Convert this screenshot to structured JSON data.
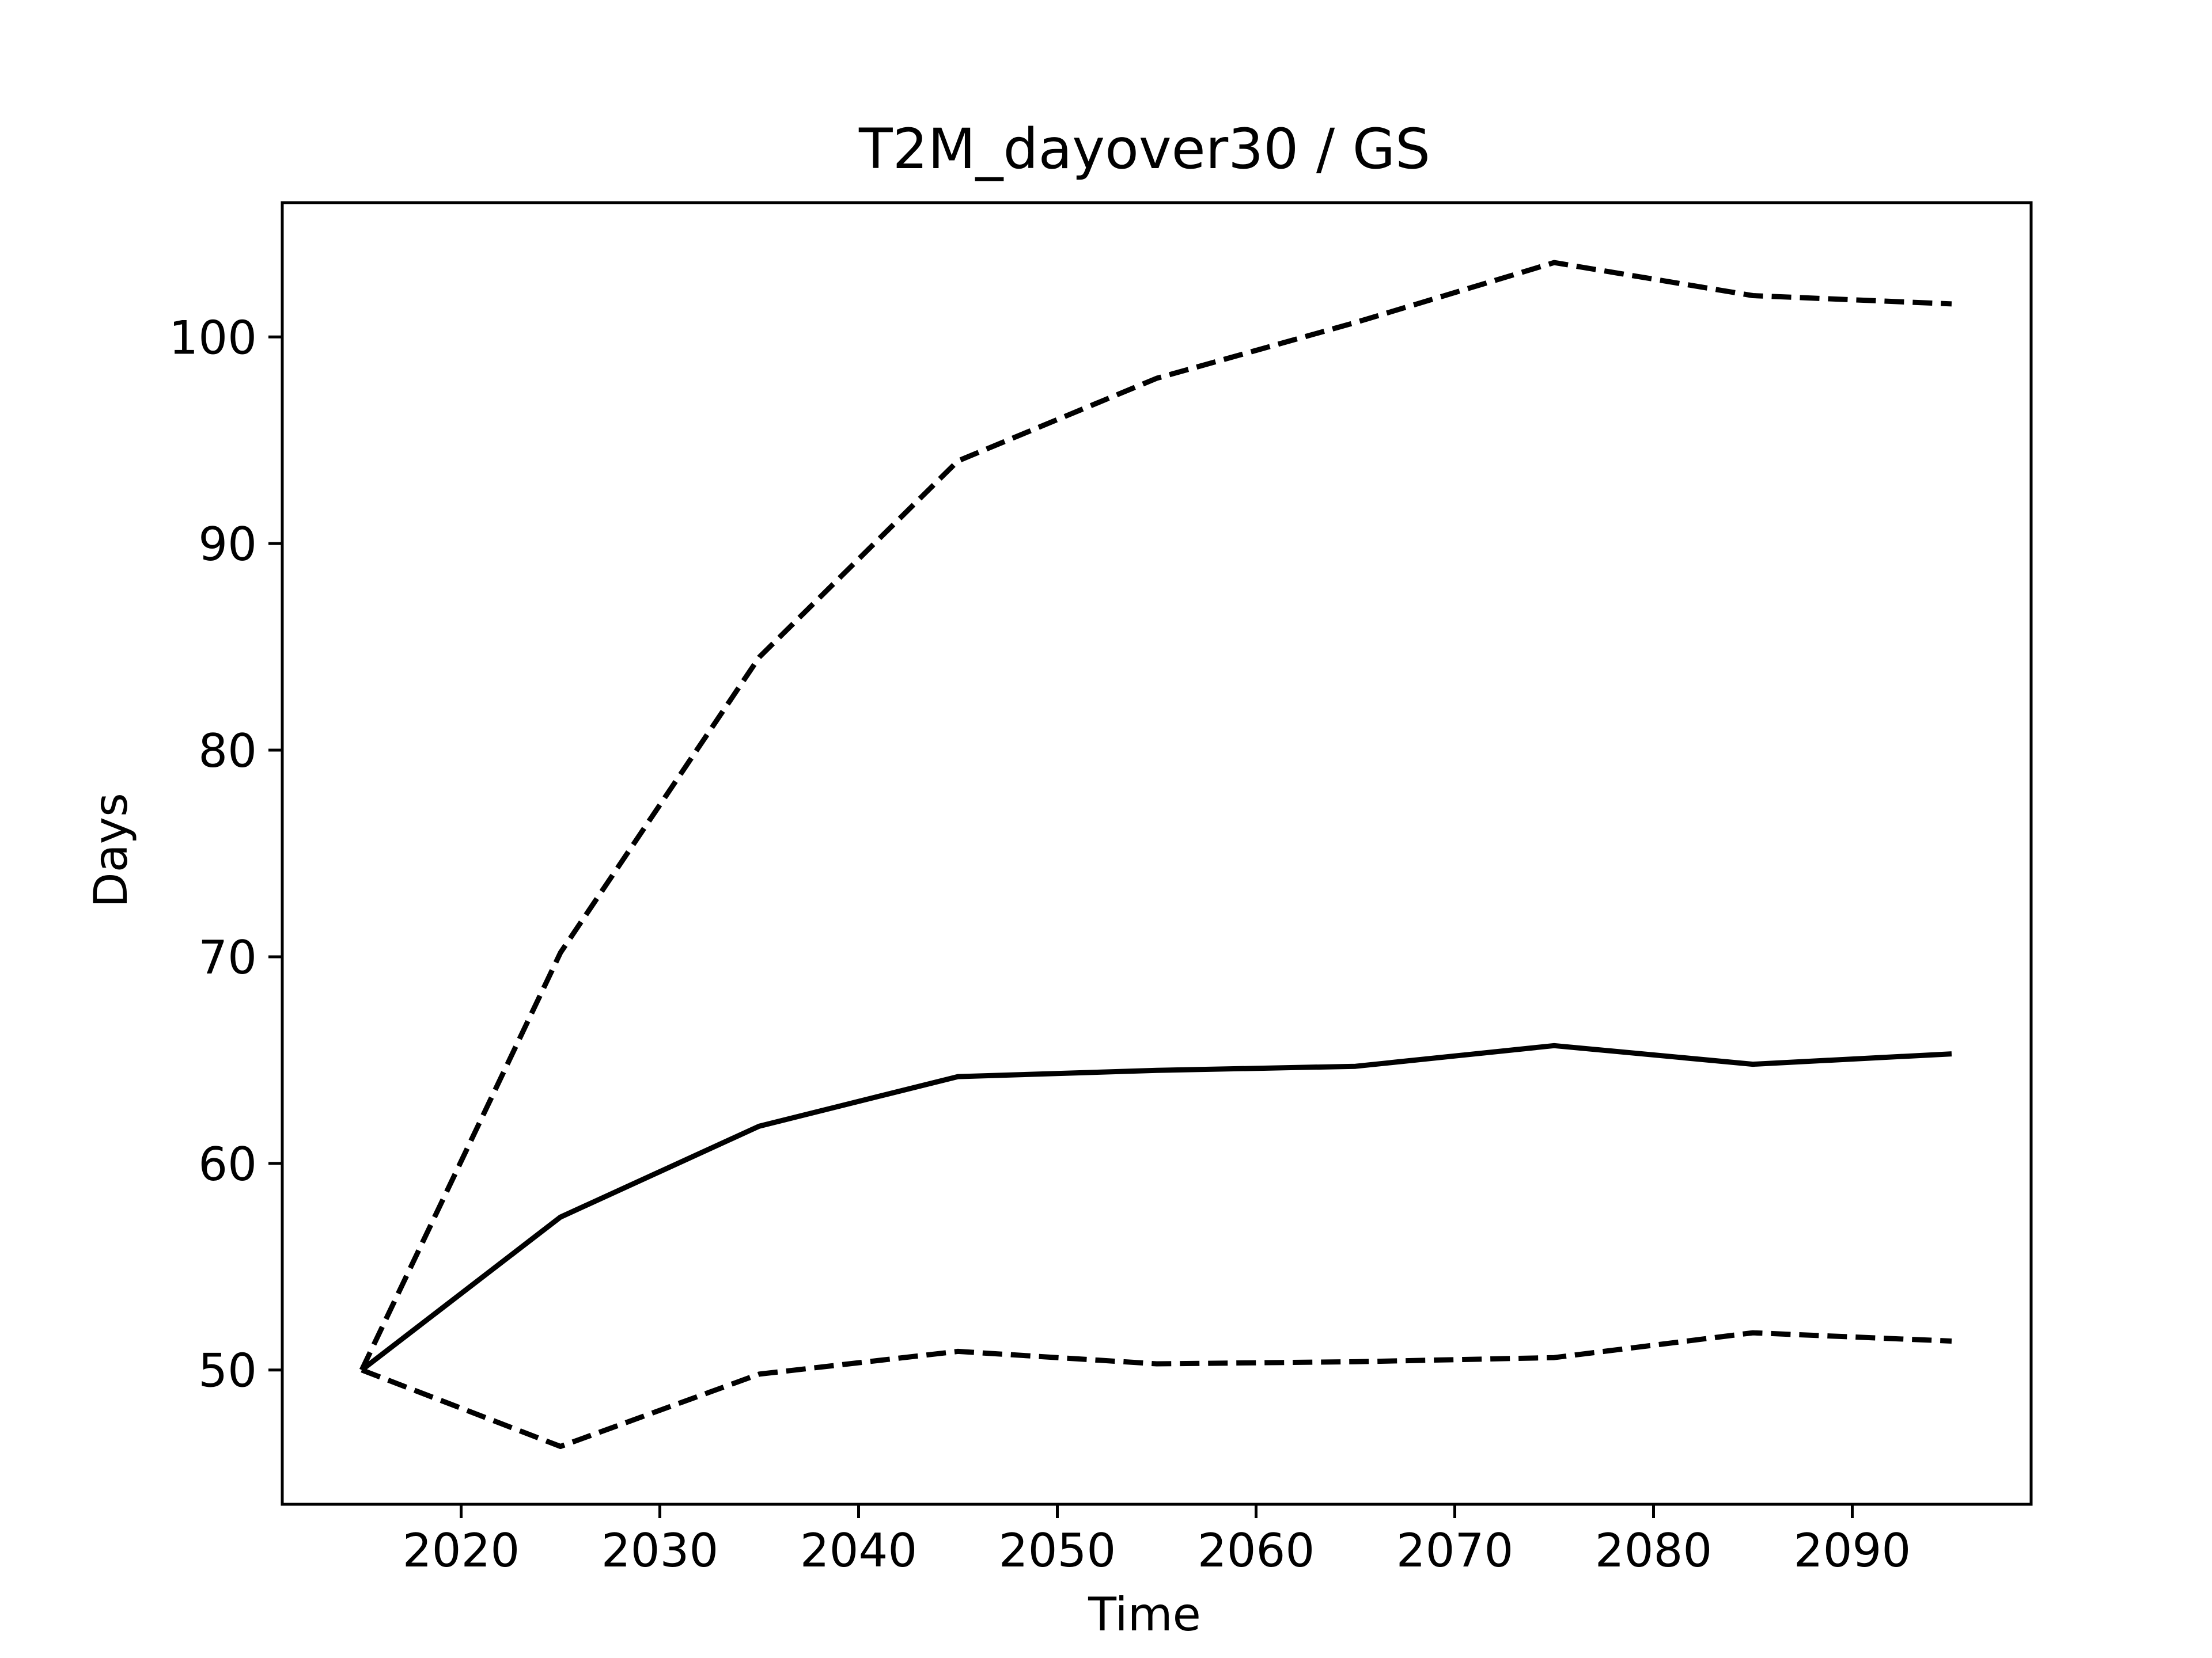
{
  "chart_data": {
    "type": "line",
    "title": "T2M_dayover30 / GS",
    "xlabel": "Time",
    "ylabel": "Days",
    "x": [
      2015,
      2025,
      2035,
      2045,
      2055,
      2065,
      2075,
      2085,
      2095
    ],
    "series": [
      {
        "style": "solid",
        "values": [
          50.0,
          57.4,
          61.8,
          64.2,
          64.5,
          64.7,
          65.7,
          64.8,
          65.3
        ]
      },
      {
        "style": "dashed",
        "values": [
          50.0,
          70.2,
          84.5,
          94.0,
          98.0,
          100.7,
          103.6,
          102.0,
          101.6
        ]
      },
      {
        "style": "dashed",
        "values": [
          50.0,
          46.3,
          49.8,
          50.9,
          50.3,
          50.4,
          50.6,
          51.8,
          51.4
        ]
      }
    ],
    "xticks": [
      "2020",
      "2030",
      "2040",
      "2050",
      "2060",
      "2070",
      "2080",
      "2090"
    ],
    "yticks": [
      "50",
      "60",
      "70",
      "80",
      "90",
      "100"
    ],
    "xlim": [
      2011,
      2099
    ],
    "ylim": [
      43.5,
      106.5
    ],
    "grid": false,
    "line_color": "#000000"
  }
}
